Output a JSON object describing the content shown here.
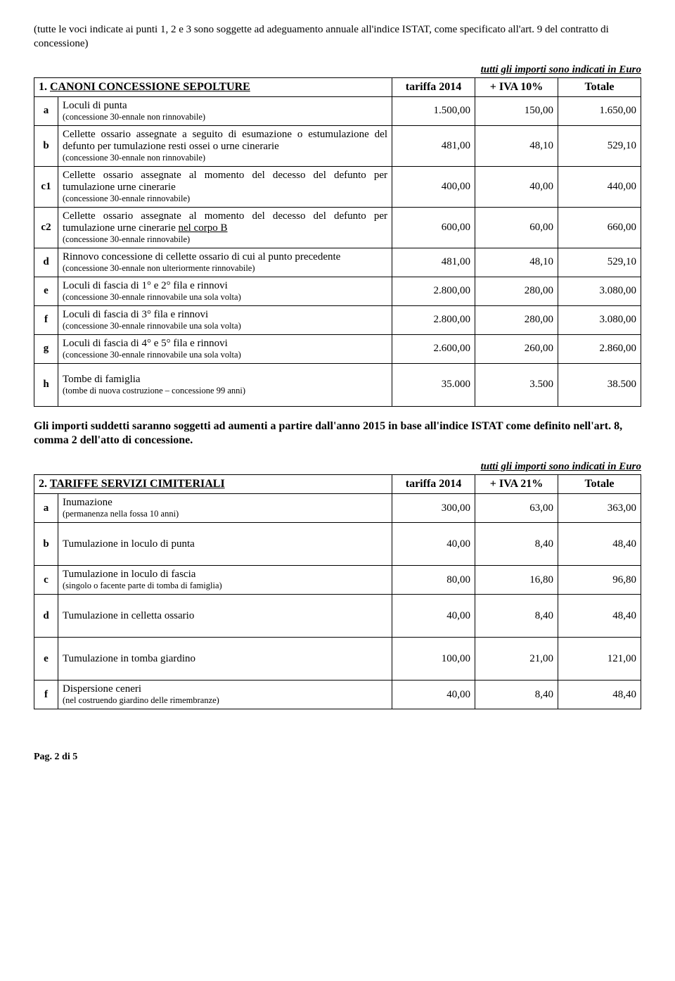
{
  "intro": "(tutte le voci indicate ai punti 1, 2 e 3 sono soggette ad adeguamento annuale all'indice ISTAT, come specificato all'art. 9 del contratto di concessione)",
  "euro_note": "tutti gli importi sono indicati in Euro",
  "table1": {
    "header": {
      "num": "1.",
      "title": "CANONI CONCESSIONE SEPOLTURE",
      "c1": "tariffa 2014",
      "c2": "+ IVA 10%",
      "c3": "Totale"
    },
    "rows": [
      {
        "l": "a",
        "main": "Loculi di punta",
        "sub": "(concessione 30-ennale non rinnovabile)",
        "v1": "1.500,00",
        "v2": "150,00",
        "v3": "1.650,00"
      },
      {
        "l": "b",
        "main": "Cellette ossario assegnate a seguito di esumazione o estumulazione del defunto per tumulazione resti ossei o urne cinerarie",
        "sub": "(concessione 30-ennale non rinnovabile)",
        "v1": "481,00",
        "v2": "48,10",
        "v3": "529,10",
        "justify": true
      },
      {
        "l": "c1",
        "main": "Cellette ossario assegnate al momento del decesso del defunto per tumulazione urne cinerarie",
        "sub": "(concessione 30-ennale rinnovabile)",
        "v1": "400,00",
        "v2": "40,00",
        "v3": "440,00",
        "justify": true
      },
      {
        "l": "c2",
        "main": "Cellette ossario assegnate al momento del decesso del defunto per tumulazione urne cinerarie nel corpo B",
        "sub": "(concessione 30-ennale rinnovabile)",
        "v1": "600,00",
        "v2": "60,00",
        "v3": "660,00",
        "justify": true,
        "underline_tail": "nel corpo B"
      },
      {
        "l": "d",
        "main": "Rinnovo concessione di cellette ossario di cui al punto precedente",
        "sub": "(concessione 30-ennale non ulteriormente rinnovabile)",
        "v1": "481,00",
        "v2": "48,10",
        "v3": "529,10",
        "justify": true
      },
      {
        "l": "e",
        "main": "Loculi di fascia di 1° e 2° fila e rinnovi",
        "sub": "(concessione 30-ennale rinnovabile una sola volta)",
        "v1": "2.800,00",
        "v2": "280,00",
        "v3": "3.080,00"
      },
      {
        "l": "f",
        "main": "Loculi di fascia di 3° fila e rinnovi",
        "sub": "(concessione 30-ennale rinnovabile una sola volta)",
        "v1": "2.800,00",
        "v2": "280,00",
        "v3": "3.080,00"
      },
      {
        "l": "g",
        "main": "Loculi di fascia di 4° e 5° fila e rinnovi",
        "sub": "(concessione 30-ennale rinnovabile una sola volta)",
        "v1": "2.600,00",
        "v2": "260,00",
        "v3": "2.860,00"
      },
      {
        "l": "h",
        "main": "Tombe di famiglia",
        "sub": "(tombe di nuova costruzione – concessione 99 anni)",
        "v1": "35.000",
        "v2": "3.500",
        "v3": "38.500",
        "tall": true
      }
    ]
  },
  "footnote1": "Gli importi suddetti saranno soggetti ad aumenti a partire dall'anno 2015 in base all'indice ISTAT come definito nell'art. 8, comma 2 dell'atto di concessione.",
  "table2": {
    "header": {
      "num": "2.",
      "title": "TARIFFE SERVIZI CIMITERIALI",
      "c1": "tariffa 2014",
      "c2": "+ IVA 21%",
      "c3": "Totale"
    },
    "rows": [
      {
        "l": "a",
        "main": "Inumazione",
        "sub": "(permanenza nella fossa 10 anni)",
        "v1": "300,00",
        "v2": "63,00",
        "v3": "363,00"
      },
      {
        "l": "b",
        "main": "Tumulazione in loculo di punta",
        "sub": "",
        "v1": "40,00",
        "v2": "8,40",
        "v3": "48,40",
        "tall": true
      },
      {
        "l": "c",
        "main": "Tumulazione in loculo di fascia",
        "sub": "(singolo o facente parte di tomba di famiglia)",
        "v1": "80,00",
        "v2": "16,80",
        "v3": "96,80"
      },
      {
        "l": "d",
        "main": "Tumulazione in celletta ossario",
        "sub": "",
        "v1": "40,00",
        "v2": "8,40",
        "v3": "48,40",
        "tall": true
      },
      {
        "l": "e",
        "main": "Tumulazione in tomba giardino",
        "sub": "",
        "v1": "100,00",
        "v2": "21,00",
        "v3": "121,00",
        "tall": true
      },
      {
        "l": "f",
        "main": "Dispersione ceneri",
        "sub": "(nel costruendo giardino delle rimembranze)",
        "v1": "40,00",
        "v2": "8,40",
        "v3": "48,40"
      }
    ]
  },
  "pager": "Pag.  2 di 5"
}
